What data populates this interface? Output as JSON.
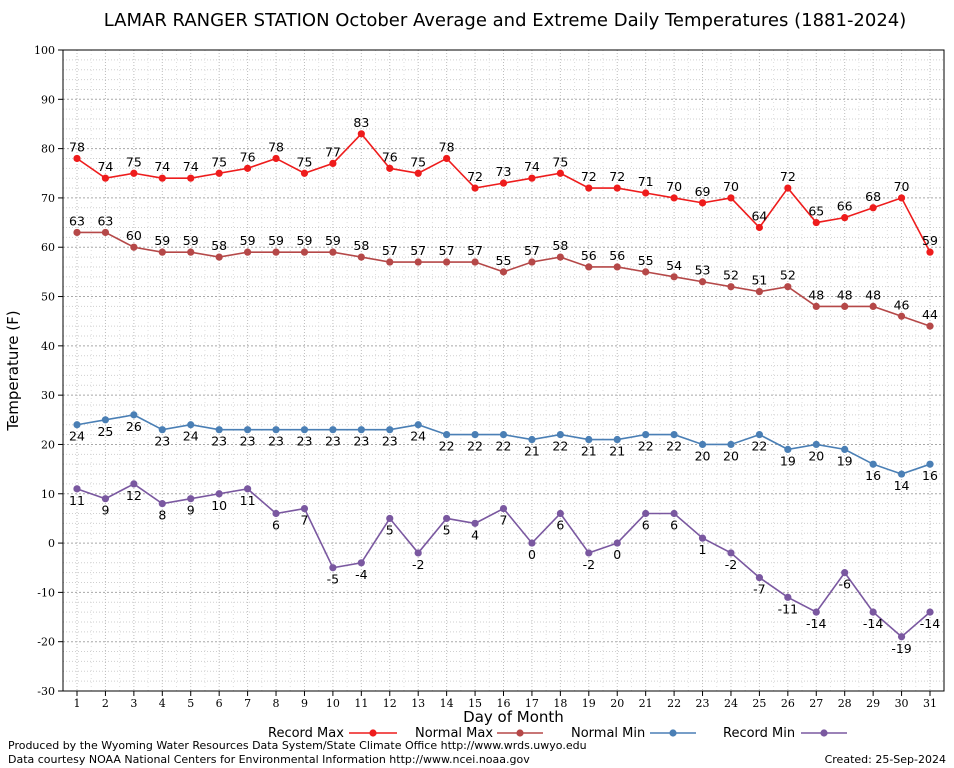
{
  "chart_data": {
    "type": "line",
    "title": "LAMAR RANGER STATION October Average and Extreme Daily Temperatures (1881-2024)",
    "xlabel": "Day of Month",
    "ylabel": "Temperature (F)",
    "ylim": [
      -30,
      100
    ],
    "yticks": [
      "100",
      "90",
      "80",
      "70",
      "60",
      "50",
      "40",
      "30",
      "20",
      "10",
      "0",
      "-10",
      "-20",
      "-30"
    ],
    "x": [
      "1",
      "2",
      "3",
      "4",
      "5",
      "6",
      "7",
      "8",
      "9",
      "10",
      "11",
      "12",
      "13",
      "14",
      "15",
      "16",
      "17",
      "18",
      "19",
      "20",
      "21",
      "22",
      "23",
      "24",
      "25",
      "26",
      "27",
      "28",
      "29",
      "30",
      "31"
    ],
    "grid": true,
    "legend_position": "bottom",
    "series": [
      {
        "name": "Record Max",
        "color": "#ee1c1c",
        "values": [
          78,
          74,
          75,
          74,
          74,
          75,
          76,
          78,
          75,
          77,
          83,
          76,
          75,
          78,
          72,
          73,
          74,
          75,
          72,
          72,
          71,
          70,
          69,
          70,
          64,
          72,
          65,
          66,
          68,
          70,
          59
        ]
      },
      {
        "name": "Normal Max",
        "color": "#b54848",
        "values": [
          63,
          63,
          60,
          59,
          59,
          58,
          59,
          59,
          59,
          59,
          58,
          57,
          57,
          57,
          57,
          55,
          57,
          58,
          56,
          56,
          55,
          54,
          53,
          52,
          51,
          52,
          48,
          48,
          48,
          46,
          44
        ]
      },
      {
        "name": "Normal Min",
        "color": "#4a7fb5",
        "values": [
          24,
          25,
          26,
          23,
          24,
          23,
          23,
          23,
          23,
          23,
          23,
          23,
          24,
          22,
          22,
          22,
          21,
          22,
          21,
          21,
          22,
          22,
          20,
          20,
          22,
          19,
          20,
          19,
          16,
          14,
          16
        ]
      },
      {
        "name": "Record Min",
        "color": "#7a58a0",
        "values": [
          11,
          9,
          12,
          8,
          9,
          10,
          11,
          6,
          7,
          -5,
          -4,
          5,
          -2,
          5,
          4,
          7,
          0,
          6,
          -2,
          0,
          6,
          6,
          1,
          -2,
          -7,
          -11,
          -14,
          -6,
          -14,
          -19,
          -14
        ]
      }
    ]
  },
  "footer": {
    "produced_by": "Produced by the Wyoming Water Resources Data System/State Climate Office http://www.wrds.uwyo.edu",
    "courtesy": "Data courtesy NOAA National Centers for Environmental Information http://www.ncei.noaa.gov",
    "created": "Created:  25-Sep-2024"
  }
}
